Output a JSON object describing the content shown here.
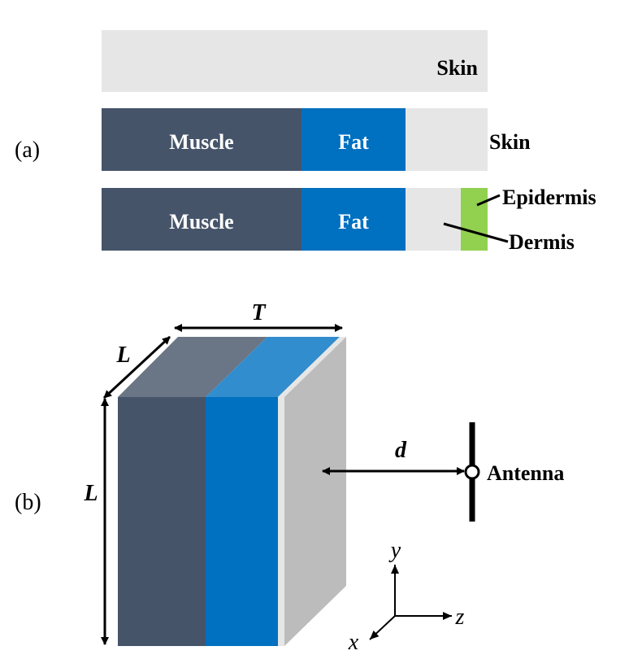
{
  "panel_a": {
    "label": "(a)",
    "row1": {
      "skin": "Skin"
    },
    "row2": {
      "muscle": "Muscle",
      "fat": "Fat",
      "skin": "Skin"
    },
    "row3": {
      "muscle": "Muscle",
      "fat": "Fat",
      "epidermis": "Epidermis",
      "dermis": "Dermis"
    }
  },
  "panel_b": {
    "label": "(b)",
    "thickness": "T",
    "length_top": "L",
    "length_side": "L",
    "distance": "d",
    "antenna": "Antenna",
    "axis_x": "x",
    "axis_y": "y",
    "axis_z": "z"
  },
  "colors": {
    "muscle": "#46546a",
    "muscle_top": "#6a7585",
    "fat": "#0070c0",
    "fat_top": "#318dcd",
    "skin": "#e6e6e6",
    "skin_side": "#bcbcbc",
    "epidermis": "#92d050"
  }
}
